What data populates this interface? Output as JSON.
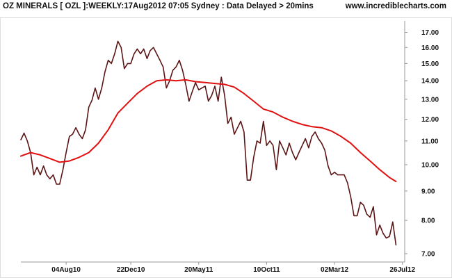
{
  "header": {
    "title": "OZ MINERALS [ OZL ]:WEEKLY:17Aug2012 07:05 Sydney : Data Delayed > 20mins",
    "site": "www.incrediblecharts.com"
  },
  "chart_data": {
    "type": "line",
    "yscale": "log",
    "ylim": [
      7.0,
      18.0
    ],
    "xlim": [
      0,
      135
    ],
    "grid": false,
    "colors": {
      "price": "#5a1414",
      "moving_average": "#e01010",
      "axis": "#999999",
      "frame": "#dddddd"
    },
    "xticks": [
      {
        "x": 14,
        "label": "04Aug10"
      },
      {
        "x": 34,
        "label": "22Dec10"
      },
      {
        "x": 55,
        "label": "20May11"
      },
      {
        "x": 76,
        "label": "10Oct11"
      },
      {
        "x": 97,
        "label": "02Mar12"
      },
      {
        "x": 118,
        "label": "26Jul12"
      }
    ],
    "yticks": [
      {
        "value": 7.0,
        "label": "7.00"
      },
      {
        "value": 8.0,
        "label": "8.00"
      },
      {
        "value": 9.0,
        "label": "9.00"
      },
      {
        "value": 10.0,
        "label": "10.00"
      },
      {
        "value": 11.0,
        "label": "11.00"
      },
      {
        "value": 12.0,
        "label": "12.00"
      },
      {
        "value": 13.0,
        "label": "13.00"
      },
      {
        "value": 14.0,
        "label": "14.00"
      },
      {
        "value": 15.0,
        "label": "15.00"
      },
      {
        "value": 16.0,
        "label": "16.00"
      },
      {
        "value": 17.0,
        "label": "17.00"
      }
    ],
    "series": [
      {
        "role": "price",
        "points": [
          [
            0,
            11.05
          ],
          [
            1,
            11.35
          ],
          [
            2,
            11.0
          ],
          [
            3,
            10.5
          ],
          [
            4,
            9.6
          ],
          [
            5,
            9.9
          ],
          [
            6,
            9.6
          ],
          [
            7,
            9.95
          ],
          [
            8,
            9.6
          ],
          [
            9,
            9.45
          ],
          [
            10,
            9.6
          ],
          [
            11,
            9.25
          ],
          [
            12,
            9.25
          ],
          [
            13,
            9.8
          ],
          [
            14,
            10.5
          ],
          [
            15,
            11.2
          ],
          [
            16,
            11.3
          ],
          [
            17,
            11.6
          ],
          [
            18,
            11.3
          ],
          [
            19,
            11.1
          ],
          [
            20,
            11.5
          ],
          [
            21,
            12.6
          ],
          [
            22,
            12.95
          ],
          [
            23,
            13.6
          ],
          [
            24,
            13.0
          ],
          [
            25,
            13.6
          ],
          [
            26,
            14.5
          ],
          [
            27,
            15.2
          ],
          [
            28,
            15.0
          ],
          [
            29,
            15.6
          ],
          [
            30,
            16.4
          ],
          [
            31,
            16.0
          ],
          [
            32,
            14.7
          ],
          [
            33,
            15.0
          ],
          [
            34,
            15.0
          ],
          [
            35,
            15.6
          ],
          [
            36,
            15.9
          ],
          [
            37,
            15.6
          ],
          [
            38,
            15.9
          ],
          [
            39,
            15.3
          ],
          [
            40,
            15.8
          ],
          [
            41,
            16.0
          ],
          [
            42,
            15.6
          ],
          [
            43,
            15.2
          ],
          [
            44,
            14.8
          ],
          [
            45,
            13.6
          ],
          [
            46,
            14.0
          ],
          [
            47,
            14.6
          ],
          [
            48,
            14.8
          ],
          [
            49,
            15.2
          ],
          [
            50,
            14.6
          ],
          [
            51,
            13.8
          ],
          [
            52,
            12.9
          ],
          [
            53,
            13.4
          ],
          [
            54,
            13.9
          ],
          [
            55,
            13.5
          ],
          [
            56,
            13.6
          ],
          [
            57,
            13.7
          ],
          [
            58,
            12.9
          ],
          [
            59,
            13.2
          ],
          [
            60,
            13.7
          ],
          [
            61,
            12.9
          ],
          [
            62,
            14.2
          ],
          [
            63,
            13.2
          ],
          [
            64,
            11.8
          ],
          [
            65,
            12.1
          ],
          [
            66,
            11.3
          ],
          [
            67,
            11.6
          ],
          [
            68,
            11.9
          ],
          [
            69,
            11.4
          ],
          [
            70,
            9.4
          ],
          [
            71,
            9.4
          ],
          [
            72,
            10.3
          ],
          [
            73,
            11.0
          ],
          [
            74,
            10.9
          ],
          [
            75,
            11.9
          ],
          [
            76,
            10.8
          ],
          [
            77,
            11.0
          ],
          [
            78,
            10.8
          ],
          [
            79,
            9.8
          ],
          [
            80,
            11.0
          ],
          [
            81,
            10.7
          ],
          [
            82,
            10.4
          ],
          [
            83,
            10.9
          ],
          [
            84,
            10.5
          ],
          [
            85,
            10.2
          ],
          [
            86,
            10.5
          ],
          [
            87,
            10.8
          ],
          [
            88,
            11.1
          ],
          [
            89,
            10.7
          ],
          [
            90,
            11.2
          ],
          [
            91,
            11.4
          ],
          [
            92,
            11.1
          ],
          [
            93,
            10.9
          ],
          [
            94,
            10.6
          ],
          [
            95,
            9.95
          ],
          [
            96,
            9.6
          ],
          [
            97,
            9.7
          ],
          [
            98,
            9.6
          ],
          [
            99,
            9.6
          ],
          [
            100,
            9.6
          ],
          [
            101,
            9.3
          ],
          [
            102,
            8.8
          ],
          [
            103,
            8.15
          ],
          [
            104,
            8.15
          ],
          [
            105,
            8.6
          ],
          [
            106,
            8.5
          ],
          [
            107,
            8.2
          ],
          [
            108,
            8.1
          ],
          [
            109,
            8.45
          ],
          [
            110,
            7.55
          ],
          [
            111,
            7.85
          ],
          [
            112,
            7.6
          ],
          [
            113,
            7.45
          ],
          [
            114,
            7.5
          ],
          [
            115,
            7.95
          ],
          [
            116,
            7.25
          ]
        ]
      },
      {
        "role": "moving_average",
        "points": [
          [
            0,
            10.35
          ],
          [
            3,
            10.5
          ],
          [
            6,
            10.4
          ],
          [
            9,
            10.25
          ],
          [
            12,
            10.1
          ],
          [
            15,
            10.15
          ],
          [
            18,
            10.3
          ],
          [
            21,
            10.5
          ],
          [
            24,
            10.9
          ],
          [
            27,
            11.5
          ],
          [
            30,
            12.3
          ],
          [
            33,
            12.8
          ],
          [
            36,
            13.3
          ],
          [
            39,
            13.7
          ],
          [
            42,
            14.0
          ],
          [
            45,
            14.05
          ],
          [
            48,
            14.0
          ],
          [
            51,
            14.05
          ],
          [
            54,
            13.95
          ],
          [
            57,
            13.9
          ],
          [
            60,
            13.85
          ],
          [
            63,
            13.8
          ],
          [
            66,
            13.65
          ],
          [
            69,
            13.3
          ],
          [
            72,
            12.9
          ],
          [
            75,
            12.5
          ],
          [
            78,
            12.35
          ],
          [
            81,
            12.1
          ],
          [
            84,
            11.9
          ],
          [
            87,
            11.75
          ],
          [
            90,
            11.65
          ],
          [
            93,
            11.6
          ],
          [
            96,
            11.45
          ],
          [
            99,
            11.2
          ],
          [
            102,
            10.9
          ],
          [
            105,
            10.5
          ],
          [
            108,
            10.15
          ],
          [
            111,
            9.8
          ],
          [
            114,
            9.5
          ],
          [
            116,
            9.35
          ]
        ]
      }
    ]
  }
}
